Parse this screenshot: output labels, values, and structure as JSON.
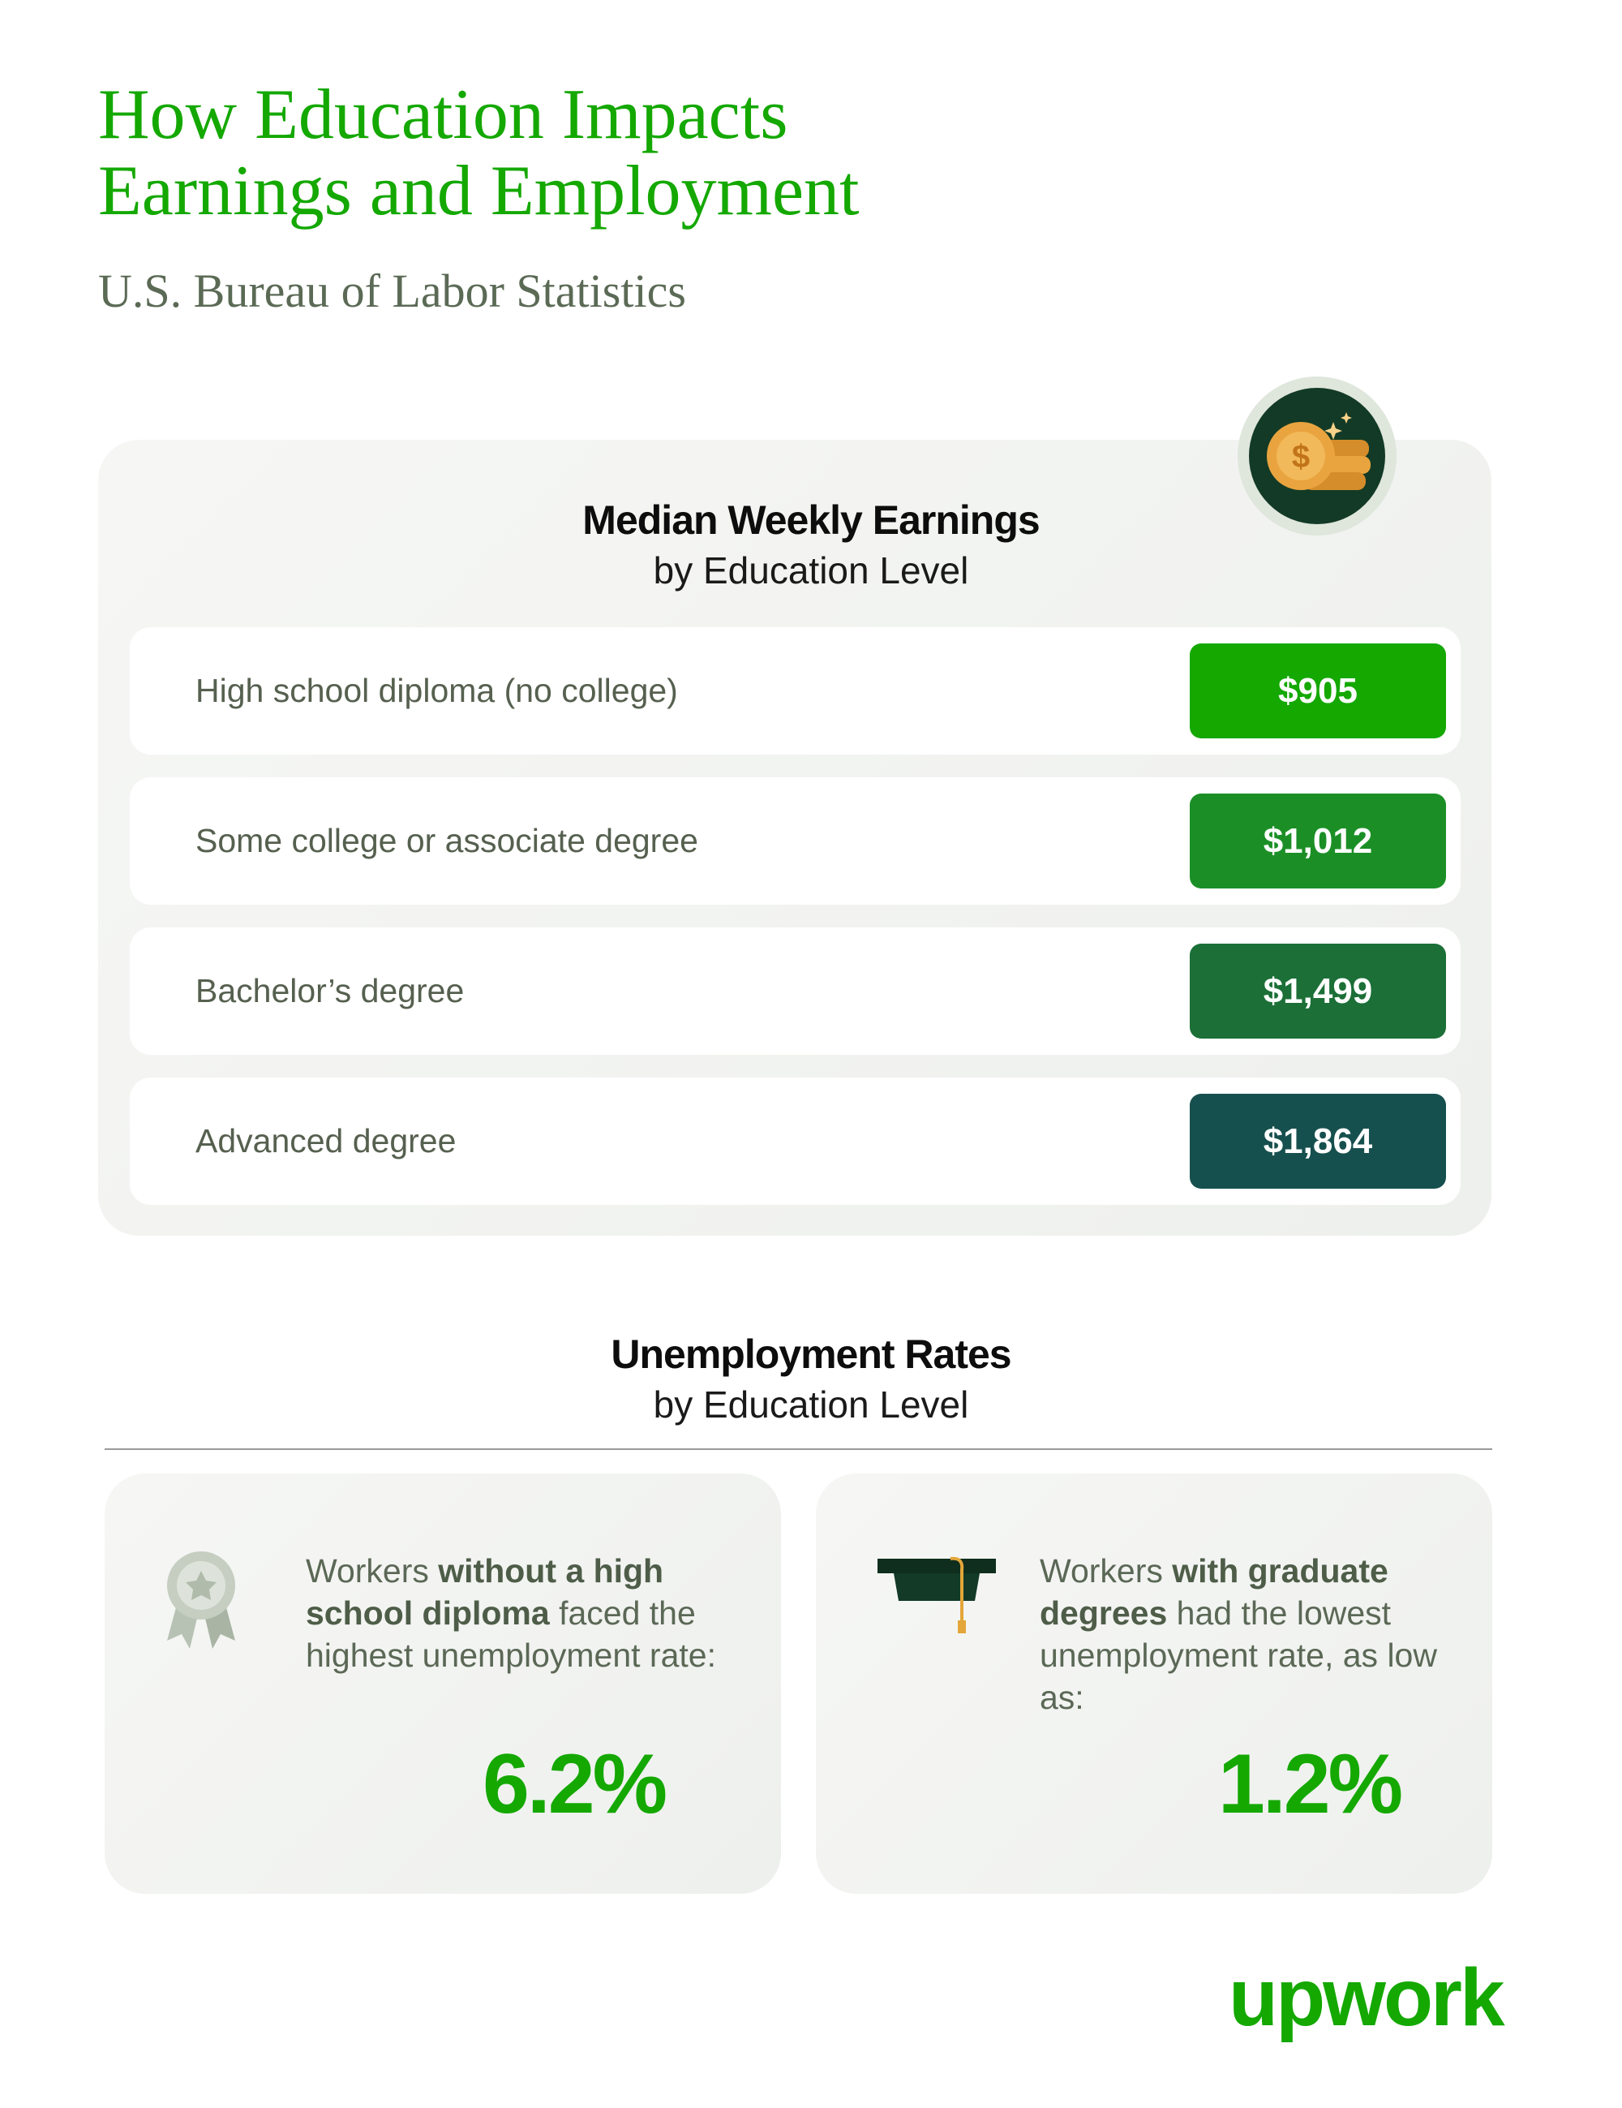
{
  "header": {
    "title_lines": [
      "How Education Impacts",
      "Earnings and Employment"
    ],
    "subtitle": "U.S. Bureau of Labor Statistics"
  },
  "earnings": {
    "title": "Median Weekly Earnings",
    "subtitle": "by Education Level",
    "rows": [
      {
        "label": "High school diploma (no college)",
        "value": "$905",
        "color": "#14a800"
      },
      {
        "label": "Some college or associate degree",
        "value": "$1,012",
        "color": "#1b8f26"
      },
      {
        "label": "Bachelor’s degree",
        "value": "$1,499",
        "color": "#1b6f37"
      },
      {
        "label": "Advanced degree",
        "value": "$1,864",
        "color": "#16504e"
      }
    ]
  },
  "unemployment": {
    "title": "Unemployment Rates",
    "subtitle": "by Education Level",
    "cards": [
      {
        "text": [
          "Workers ",
          "without a high school diploma",
          " faced the highest unemployment rate:"
        ],
        "value": "6.2%"
      },
      {
        "text": [
          "Workers ",
          "with graduate degrees",
          " had the lowest unemployment rate, as low as:"
        ],
        "value": "1.2%"
      }
    ]
  },
  "logo": "upwork"
}
